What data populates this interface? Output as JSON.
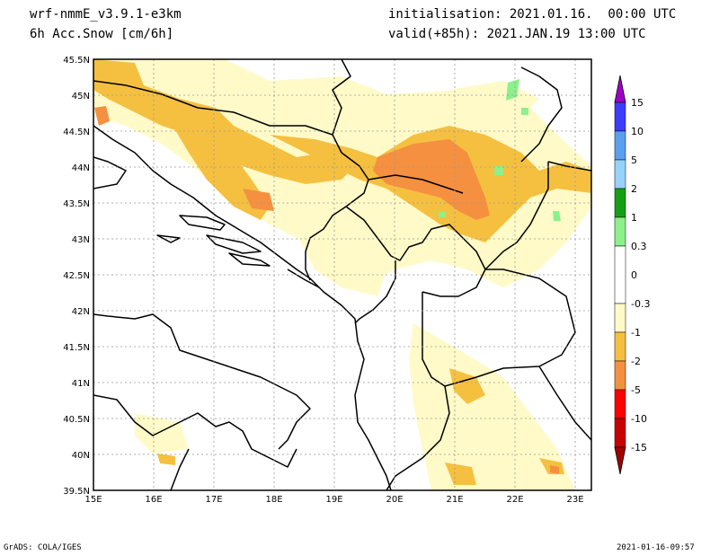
{
  "header": {
    "model": "wrf-nmmE_v3.9.1-e3km",
    "field": "6h Acc.Snow [cm/6h]",
    "init": "initialisation: 2021.01.16.  00:00 UTC",
    "valid": "valid(+85h): 2021.JAN.19 13:00 UTC"
  },
  "axes": {
    "lat_labels": [
      "45.5N",
      "45N",
      "44.5N",
      "44N",
      "43.5N",
      "43N",
      "42.5N",
      "42N",
      "41.5N",
      "41N",
      "40.5N",
      "40N",
      "39.5N"
    ],
    "lon_labels": [
      "15E",
      "16E",
      "17E",
      "18E",
      "19E",
      "20E",
      "21E",
      "22E",
      "23E"
    ],
    "lat_range": [
      39.5,
      45.5
    ],
    "lon_range": [
      15,
      23.3
    ],
    "grid": true
  },
  "legend": {
    "labels": [
      "15",
      "10",
      "5",
      "2",
      "1",
      "0.3",
      "0",
      "-0.3",
      "-1",
      "-2",
      "-5",
      "-10",
      "-15"
    ],
    "colors": [
      "#a000c8",
      "#3c3cff",
      "#5aa0f0",
      "#96d2fa",
      "#14a014",
      "#8cf08c",
      "#ffffff",
      "#fffac8",
      "#f5c040",
      "#f59040",
      "#ff0000",
      "#c80000",
      "#a00000"
    ]
  },
  "footer": {
    "left": "GrADS: COLA/IGES",
    "right": "2021-01-16-09:57"
  }
}
